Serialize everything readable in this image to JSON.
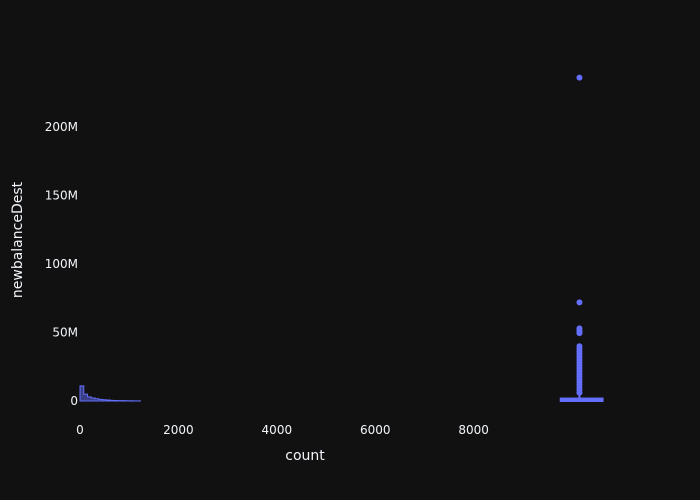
{
  "chart_data": {
    "type": "scatter",
    "description_series_color": "#636efa",
    "background": "#111111",
    "xlabel": "count",
    "ylabel": "newbalanceDest",
    "xlim": [
      0,
      12600
    ],
    "ylim": [
      -12000000,
      257000000
    ],
    "x_ticks": [
      0,
      2000,
      4000,
      6000,
      8000
    ],
    "x_tick_labels": [
      "0",
      "2000",
      "4000",
      "6000",
      "8000"
    ],
    "y_ticks": [
      0,
      50000000,
      100000000,
      150000000,
      200000000
    ],
    "y_tick_labels": [
      "0",
      "50M",
      "100M",
      "150M",
      "200M"
    ],
    "grid": false,
    "legend": "none",
    "marginal_histogram": {
      "x_range": [
        0,
        1230
      ],
      "heights": [
        11000000,
        5000000,
        3000000,
        2200000,
        1600000,
        1200000,
        900000,
        700000,
        500000,
        400000,
        300000,
        250000,
        200000,
        150000,
        120000,
        100000
      ]
    },
    "box": {
      "x_center": 10150,
      "x_span": [
        9770,
        10620
      ],
      "q1": 0,
      "median": 400000,
      "q3": 1800000,
      "lower_fence": 0,
      "upper_fence": 4500000
    },
    "outliers": [
      {
        "x": 10150,
        "y": 236000000
      },
      {
        "x": 10150,
        "y": 72000000
      },
      {
        "x": 10150,
        "y": 53000000
      },
      {
        "x": 10150,
        "y": 51500000
      },
      {
        "x": 10150,
        "y": 50500000
      },
      {
        "x": 10150,
        "y": 49500000
      },
      {
        "x": 10150,
        "y": 40000000
      },
      {
        "x": 10150,
        "y": 38000000
      },
      {
        "x": 10150,
        "y": 36000000
      },
      {
        "x": 10150,
        "y": 34000000
      },
      {
        "x": 10150,
        "y": 32000000
      },
      {
        "x": 10150,
        "y": 30000000
      },
      {
        "x": 10150,
        "y": 28000000
      },
      {
        "x": 10150,
        "y": 26000000
      },
      {
        "x": 10150,
        "y": 24000000
      },
      {
        "x": 10150,
        "y": 22000000
      },
      {
        "x": 10150,
        "y": 20000000
      },
      {
        "x": 10150,
        "y": 18000000
      },
      {
        "x": 10150,
        "y": 16000000
      },
      {
        "x": 10150,
        "y": 14000000
      },
      {
        "x": 10150,
        "y": 12000000
      },
      {
        "x": 10150,
        "y": 10000000
      },
      {
        "x": 10150,
        "y": 8000000
      },
      {
        "x": 10150,
        "y": 6000000
      }
    ]
  }
}
